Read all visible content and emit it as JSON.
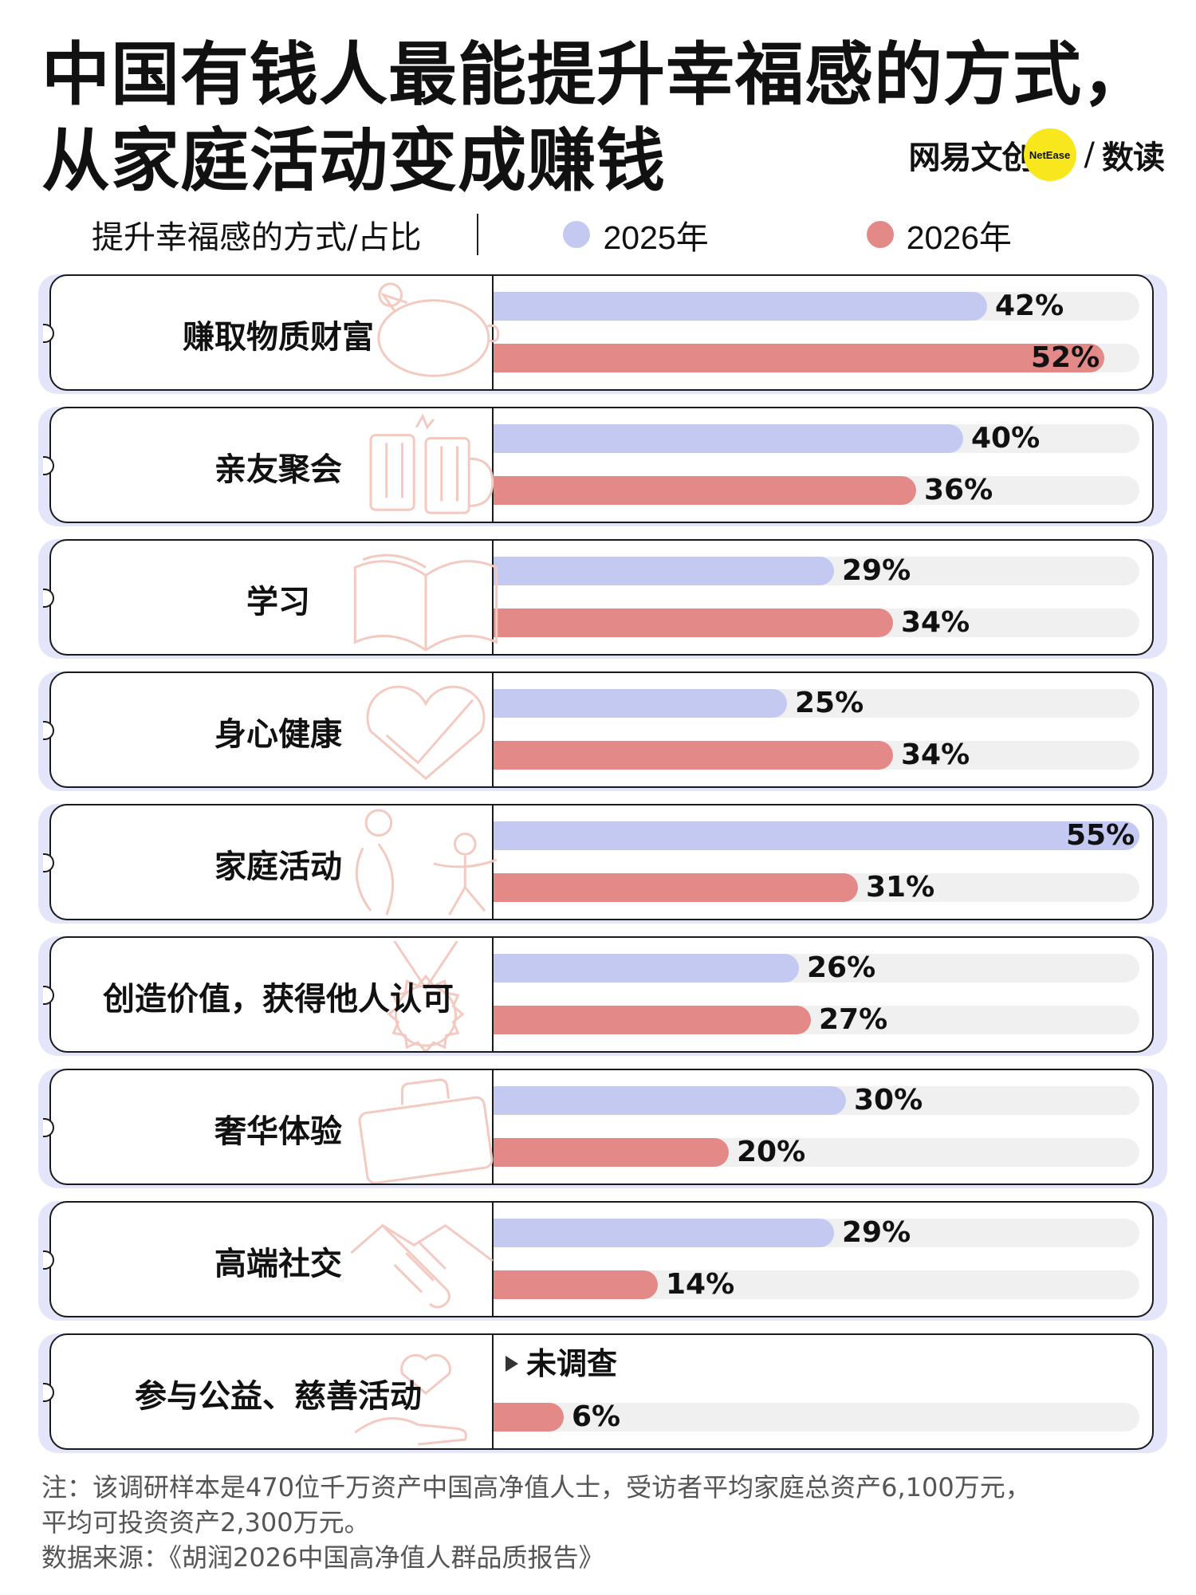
{
  "title": {
    "line1": "中国有钱人最能提升幸福感的方式，",
    "line2": "从家庭活动变成赚钱"
  },
  "brand": {
    "name": "网易文创",
    "badge": "NetEase",
    "slash": "/",
    "channel": "数读"
  },
  "legend": {
    "heading": "提升幸福感的方式/占比",
    "items": [
      {
        "label": "2025年",
        "color": "#c4c9f2"
      },
      {
        "label": "2026年",
        "color": "#e38a89"
      }
    ]
  },
  "chart_data": {
    "type": "bar",
    "orientation": "horizontal",
    "categories": [
      "赚取物质财富",
      "亲友聚会",
      "学习",
      "身心健康",
      "家庭活动",
      "创造价值，获得他人认可",
      "奢华体验",
      "高端社交",
      "参与公益、慈善活动"
    ],
    "series": [
      {
        "name": "2025年",
        "values": [
          42,
          40,
          29,
          25,
          55,
          26,
          30,
          29,
          null
        ],
        "labels": [
          "42%",
          "40%",
          "29%",
          "25%",
          "55%",
          "26%",
          "30%",
          "29%",
          null
        ]
      },
      {
        "name": "2026年",
        "values": [
          52,
          36,
          34,
          34,
          31,
          27,
          20,
          14,
          6
        ],
        "labels": [
          "52%",
          "36%",
          "34%",
          "34%",
          "31%",
          "27%",
          "20%",
          "14%",
          "6%"
        ]
      }
    ],
    "xlim": [
      0,
      55
    ],
    "untested_note": "未调查",
    "legend_position": "top"
  },
  "icons": [
    "piggy-bank-icon",
    "beer-mugs-icon",
    "open-book-icon",
    "heart-check-icon",
    "family-icon",
    "medal-icon",
    "briefcase-icon",
    "handshake-icon",
    "heart-hand-icon"
  ],
  "footer": {
    "note_line1": "注：该调研样本是470位千万资产中国高净值人士，受访者平均家庭总资产6,100万元，",
    "note_line2": "平均可投资资产2,300万元。",
    "source": "数据来源：《胡润2026中国高净值人群品质报告》"
  }
}
